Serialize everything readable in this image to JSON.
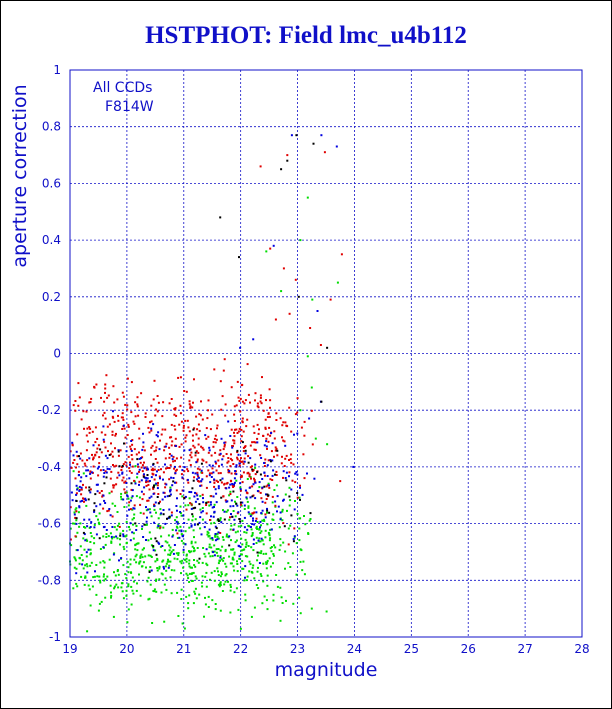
{
  "chart_data": {
    "type": "scatter",
    "title": "HSTPHOT: Field lmc_u4b112",
    "xlabel": "magnitude",
    "ylabel": "aperture correction",
    "xlim": [
      19,
      28
    ],
    "ylim": [
      -1,
      1
    ],
    "xticks": [
      "19",
      "20",
      "21",
      "22",
      "23",
      "24",
      "25",
      "26",
      "27",
      "28"
    ],
    "yticks": [
      "-1",
      "-0.8",
      "-0.6",
      "-0.4",
      "-0.2",
      "0",
      "0.2",
      "0.4",
      "0.6",
      "0.8",
      "1"
    ],
    "grid": true,
    "annotation": [
      "All CCDs",
      "F814W"
    ],
    "colors": {
      "axis": "#1010c8",
      "grid": "#1010c8",
      "red_points": "#e00000",
      "green_points": "#00dd00",
      "blue_points": "#0000e0",
      "black_points": "#000000"
    },
    "series": [
      {
        "color": "#e00000",
        "points": [
          [
            22.82,
            0.7
          ],
          [
            23.48,
            0.71
          ],
          [
            22.35,
            0.66
          ],
          [
            23.78,
            0.35
          ],
          [
            23.58,
            0.19
          ],
          [
            22.52,
            0.37
          ],
          [
            22.97,
            0.26
          ],
          [
            22.76,
            0.3
          ],
          [
            23.22,
            0.09
          ],
          [
            22.86,
            0.14
          ],
          [
            22.62,
            0.12
          ],
          [
            23.41,
            0.03
          ],
          [
            21.72,
            -0.02
          ],
          [
            21.95,
            -0.1
          ],
          [
            20.25,
            -0.14
          ],
          [
            19.6,
            -0.17
          ],
          [
            23.75,
            -0.45
          ],
          [
            23.12,
            -0.29
          ]
        ]
      },
      {
        "color": "#00dd00",
        "points": [
          [
            23.18,
            0.55
          ],
          [
            22.45,
            0.36
          ],
          [
            23.05,
            0.4
          ],
          [
            23.71,
            0.25
          ],
          [
            23.26,
            0.19
          ],
          [
            22.71,
            0.22
          ],
          [
            23.18,
            -0.01
          ],
          [
            23.25,
            -0.12
          ],
          [
            23.32,
            -0.3
          ],
          [
            23.05,
            -0.2
          ],
          [
            23.52,
            -0.32
          ],
          [
            23.25,
            -0.9
          ],
          [
            23.51,
            -0.91
          ],
          [
            22.72,
            -0.86
          ],
          [
            21.02,
            -0.97
          ],
          [
            19.3,
            -0.98
          ]
        ]
      },
      {
        "color": "#0000e0",
        "points": [
          [
            23.42,
            0.77
          ],
          [
            23.69,
            0.73
          ],
          [
            22.9,
            0.77
          ],
          [
            22.58,
            0.38
          ],
          [
            23.35,
            0.15
          ],
          [
            23.41,
            -0.17
          ],
          [
            22.22,
            0.05
          ],
          [
            21.99,
            0.02
          ],
          [
            23.98,
            -0.4
          ],
          [
            22.08,
            -0.75
          ]
        ]
      },
      {
        "color": "#000000",
        "points": [
          [
            22.98,
            0.77
          ],
          [
            21.64,
            0.48
          ],
          [
            21.97,
            0.34
          ],
          [
            22.82,
            0.68
          ],
          [
            23.28,
            0.74
          ],
          [
            22.71,
            0.65
          ],
          [
            23.02,
            0.2
          ],
          [
            23.42,
            -0.17
          ],
          [
            23.52,
            0.02
          ],
          [
            21.21,
            -0.35
          ],
          [
            20.52,
            -0.71
          ]
        ]
      }
    ],
    "dense_cloud": {
      "x_range": [
        19,
        23.3
      ],
      "peak_y": -0.55,
      "red_center": -0.35,
      "green_center": -0.7,
      "blue_center": -0.5,
      "count_red": 700,
      "count_green": 750,
      "count_blue": 420,
      "count_black": 90
    }
  }
}
